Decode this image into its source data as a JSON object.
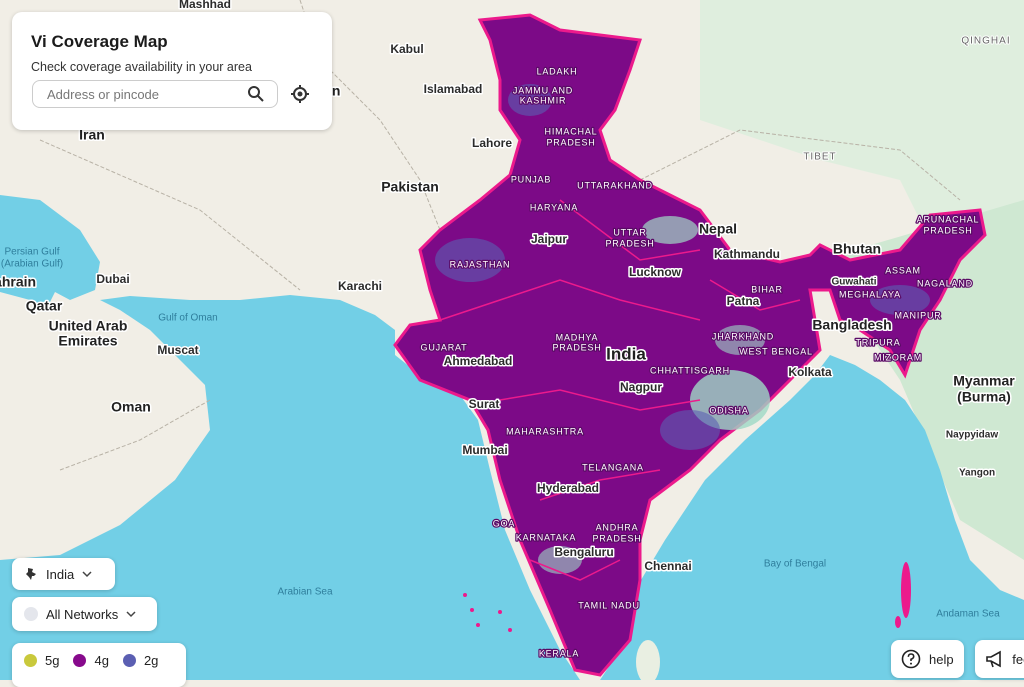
{
  "search_panel": {
    "title": "Vi Coverage Map",
    "subtitle": "Check coverage availability in your area",
    "placeholder": "Address or pincode"
  },
  "region_select": {
    "label": "India"
  },
  "network_select": {
    "label": "All Networks"
  },
  "legend": [
    {
      "label": "5g",
      "color": "#c9c93c"
    },
    {
      "label": "4g",
      "color": "#870a8c"
    },
    {
      "label": "2g",
      "color": "#5b5fb2"
    }
  ],
  "help_button": {
    "label": "help"
  },
  "feedback_button": {
    "label": "feedback"
  },
  "map_labels": [
    "Mashhad",
    "Kabul",
    "Islamabad",
    "Afghanistan",
    "Iran",
    "Lahore",
    "Pakistan",
    "Karachi",
    "Persian Gulf",
    "(Arabian Gulf)",
    "Bahrain",
    "Dubai",
    "Qatar",
    "Gulf of Oman",
    "United Arab",
    "Emirates",
    "Muscat",
    "Oman",
    "QINGHAI",
    "LADAKH",
    "JAMMU AND",
    "KASHMIR",
    "HIMACHAL",
    "PRADESH",
    "TIBET",
    "PUNJAB",
    "UTTARAKHAND",
    "HARYANA",
    "Nepal",
    "UTTAR",
    "PRADESH",
    "Jaipur",
    "Bhutan",
    "Kathmandu",
    "RAJASTHAN",
    "Lucknow",
    "ARUNACHAL",
    "PRADESH",
    "ASSAM",
    "Guwahati",
    "NAGALAND",
    "BIHAR",
    "MEGHALAYA",
    "Patna",
    "MANIPUR",
    "Bangladesh",
    "MADHYA",
    "PRADESH",
    "JHARKHAND",
    "TRIPURA",
    "GUJARAT",
    "WEST BENGAL",
    "India",
    "MIZORAM",
    "Ahmedabad",
    "CHHATTISGARH",
    "Kolkata",
    "Myanmar",
    "(Burma)",
    "Nagpur",
    "Surat",
    "ODISHA",
    "MAHARASHTRA",
    "Naypyidaw",
    "Mumbai",
    "TELANGANA",
    "Yangon",
    "Hyderabad",
    "GOA",
    "ANDHRA",
    "PRADESH",
    "KARNATAKA",
    "Bengaluru",
    "Bay of Bengal",
    "Chennai",
    "Arabian Sea",
    "TAMIL NADU",
    "Andaman Sea",
    "KERALA"
  ]
}
